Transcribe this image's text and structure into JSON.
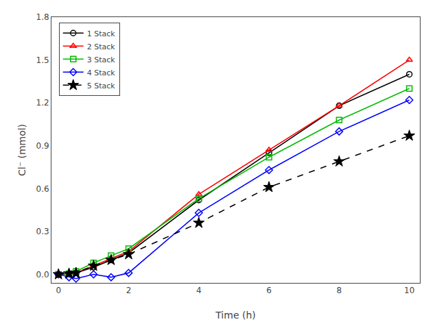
{
  "chart_data": {
    "type": "line",
    "x_label": "Time (h)",
    "y_label": "Cl⁻ (mmol)",
    "xlim": [
      -0.2,
      10.3
    ],
    "ylim": [
      -0.06,
      1.8
    ],
    "xticks": [
      0,
      2,
      4,
      6,
      8,
      10
    ],
    "yticks": [
      {
        "value": 0,
        "label": "0.0"
      },
      0.3,
      0.6,
      0.9,
      1.2,
      1.5,
      1.8
    ],
    "grid": false,
    "legend": "upper left",
    "series": [
      {
        "name": "1 Stack",
        "color": "#000000",
        "marker": "circle",
        "line_style": "solid",
        "x": [
          0,
          0.3,
          0.5,
          1,
          1.5,
          2,
          4,
          6,
          8,
          10
        ],
        "values": [
          0.0,
          0.005,
          0.01,
          0.05,
          0.1,
          0.15,
          0.52,
          0.85,
          1.18,
          1.4
        ]
      },
      {
        "name": "2 Stack",
        "color": "#ff0000",
        "marker": "triangle-up",
        "line_style": "solid",
        "x": [
          0,
          0.3,
          0.5,
          1,
          1.5,
          2,
          4,
          6,
          8,
          10
        ],
        "values": [
          0.0,
          0.005,
          0.01,
          0.06,
          0.11,
          0.16,
          0.56,
          0.87,
          1.18,
          1.5
        ]
      },
      {
        "name": "3 Stack",
        "color": "#00bb00",
        "marker": "square",
        "line_style": "solid",
        "x": [
          0,
          0.3,
          0.5,
          1,
          1.5,
          2,
          4,
          6,
          8,
          10
        ],
        "values": [
          0.0,
          0.005,
          0.02,
          0.08,
          0.13,
          0.18,
          0.53,
          0.82,
          1.08,
          1.3
        ]
      },
      {
        "name": "4 Stack",
        "color": "#0000ff",
        "marker": "diamond",
        "line_style": "solid",
        "x": [
          0,
          0.3,
          0.5,
          1,
          1.5,
          2,
          4,
          6,
          8,
          10
        ],
        "values": [
          0.0,
          -0.02,
          -0.03,
          0.0,
          -0.02,
          0.01,
          0.43,
          0.73,
          1.0,
          1.22
        ]
      },
      {
        "name": "5 Stack",
        "color": "#000000",
        "marker": "star",
        "line_style": "dashed",
        "x": [
          0,
          0.3,
          0.5,
          1,
          1.5,
          2,
          4,
          6,
          8,
          10
        ],
        "values": [
          0.0,
          0.005,
          0.01,
          0.06,
          0.1,
          0.14,
          0.36,
          0.61,
          0.79,
          0.97
        ]
      }
    ]
  }
}
